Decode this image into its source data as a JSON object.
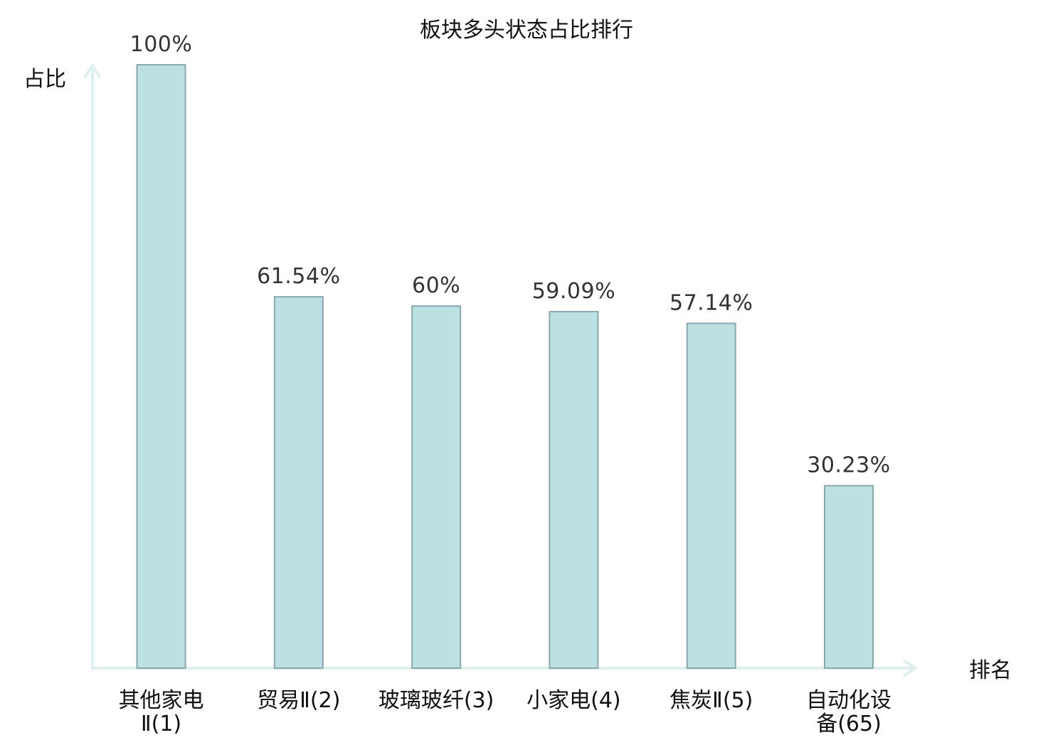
{
  "chart_data": {
    "type": "bar",
    "title": "板块多头状态占比排行",
    "ylabel": "占比",
    "xlabel": "排名",
    "ylim": [
      0,
      100
    ],
    "grid": false,
    "categories": [
      {
        "lines": [
          "其他家电",
          "Ⅱ(1)"
        ],
        "name": "其他家电Ⅱ(1)",
        "highlight": false
      },
      {
        "lines": [
          "贸易Ⅱ(2)"
        ],
        "name": "贸易Ⅱ(2)",
        "highlight": false
      },
      {
        "lines": [
          "玻璃玻纤(3)"
        ],
        "name": "玻璃玻纤(3)",
        "highlight": false
      },
      {
        "lines": [
          "小家电(4)"
        ],
        "name": "小家电(4)",
        "highlight": false
      },
      {
        "lines": [
          "焦炭Ⅱ(5)"
        ],
        "name": "焦炭Ⅱ(5)",
        "highlight": false
      },
      {
        "lines": [
          "自动化设",
          "备(65)"
        ],
        "name": "自动化设备(65)",
        "highlight": true
      }
    ],
    "values": [
      100,
      61.54,
      60,
      59.09,
      57.14,
      30.23
    ],
    "value_labels": [
      "100%",
      "61.54%",
      "60%",
      "59.09%",
      "57.14%",
      "30.23%"
    ],
    "colors": {
      "bar_fill": "#bde0e3",
      "bar_stroke": "#8aa9ac",
      "axis": "#ddf0ee",
      "highlight_label": "#e8211c",
      "label": "#111111",
      "value_label": "#333333"
    }
  }
}
